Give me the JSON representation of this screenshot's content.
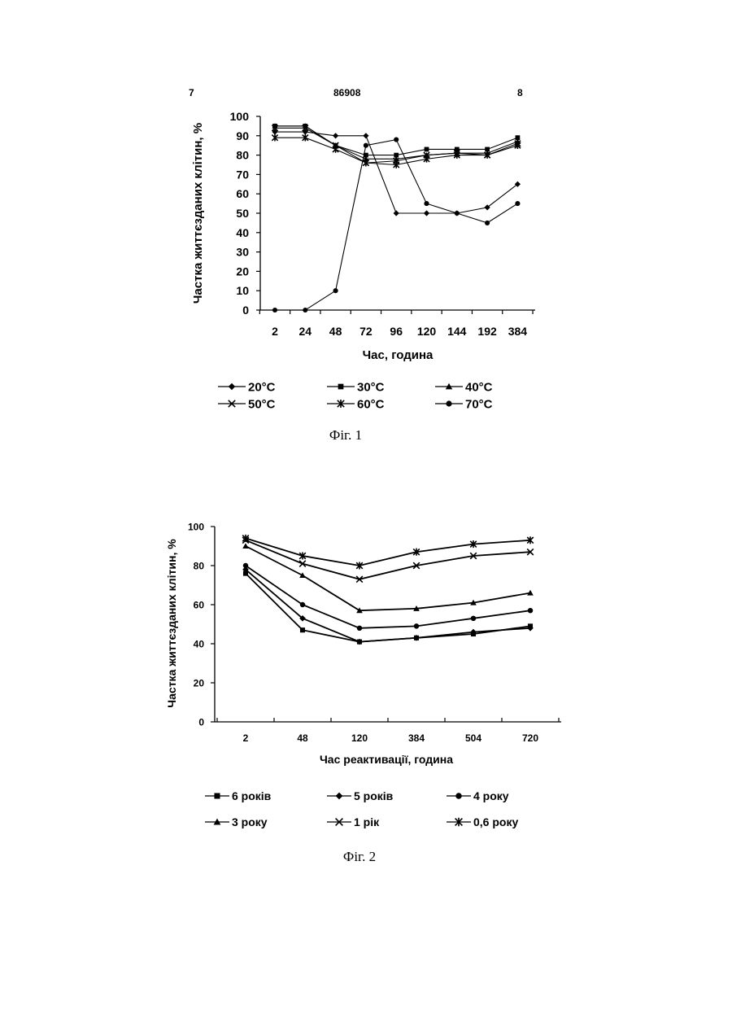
{
  "page": {
    "page_left": "7",
    "document_number": "86908",
    "page_right": "8"
  },
  "chart_data": [
    {
      "type": "line",
      "caption": "Фіг. 1",
      "xlabel": "Час, година",
      "ylabel": "Частка життєзданих клітин, %",
      "categories": [
        "2",
        "24",
        "48",
        "72",
        "96",
        "120",
        "144",
        "192",
        "384"
      ],
      "ylim": [
        0,
        100
      ],
      "yticks": [
        0,
        10,
        20,
        30,
        40,
        50,
        60,
        70,
        80,
        90,
        100
      ],
      "grid": false,
      "legend_position": "bottom",
      "series": [
        {
          "name": "20°C",
          "marker": "diamond",
          "values": [
            92,
            92,
            90,
            90,
            50,
            50,
            50,
            53,
            65
          ]
        },
        {
          "name": "30°C",
          "marker": "square",
          "values": [
            95,
            95,
            85,
            80,
            80,
            83,
            83,
            83,
            89
          ]
        },
        {
          "name": "40°C",
          "marker": "triangle",
          "values": [
            95,
            95,
            85,
            78,
            78,
            80,
            81,
            81,
            87
          ]
        },
        {
          "name": "50°C",
          "marker": "x",
          "values": [
            94,
            94,
            85,
            76,
            77,
            80,
            81,
            80,
            86
          ]
        },
        {
          "name": "60°C",
          "marker": "star",
          "values": [
            89,
            89,
            83,
            76,
            75,
            78,
            80,
            80,
            85
          ]
        },
        {
          "name": "70°C",
          "marker": "circle",
          "values": [
            0,
            0,
            10,
            85,
            88,
            55,
            50,
            45,
            55
          ]
        }
      ]
    },
    {
      "type": "line",
      "caption": "Фіг. 2",
      "xlabel": "Час реактивації, година",
      "ylabel": "Частка життєзданих клітин, %",
      "categories": [
        "2",
        "48",
        "120",
        "384",
        "504",
        "720"
      ],
      "ylim": [
        0,
        100
      ],
      "yticks": [
        0,
        20,
        40,
        60,
        80,
        100
      ],
      "grid": false,
      "legend_position": "bottom",
      "series": [
        {
          "name": "6 років",
          "marker": "square",
          "values": [
            76,
            47,
            41,
            43,
            45,
            49
          ]
        },
        {
          "name": "5 років",
          "marker": "diamond",
          "values": [
            78,
            53,
            41,
            43,
            46,
            48
          ]
        },
        {
          "name": "4 року",
          "marker": "circle",
          "values": [
            80,
            60,
            48,
            49,
            53,
            57
          ]
        },
        {
          "name": "3 року",
          "marker": "triangle",
          "values": [
            90,
            75,
            57,
            58,
            61,
            66
          ]
        },
        {
          "name": "1 рік",
          "marker": "x",
          "values": [
            93,
            81,
            73,
            80,
            85,
            87
          ]
        },
        {
          "name": "0,6 року",
          "marker": "star",
          "values": [
            94,
            85,
            80,
            87,
            91,
            93
          ]
        }
      ]
    }
  ]
}
